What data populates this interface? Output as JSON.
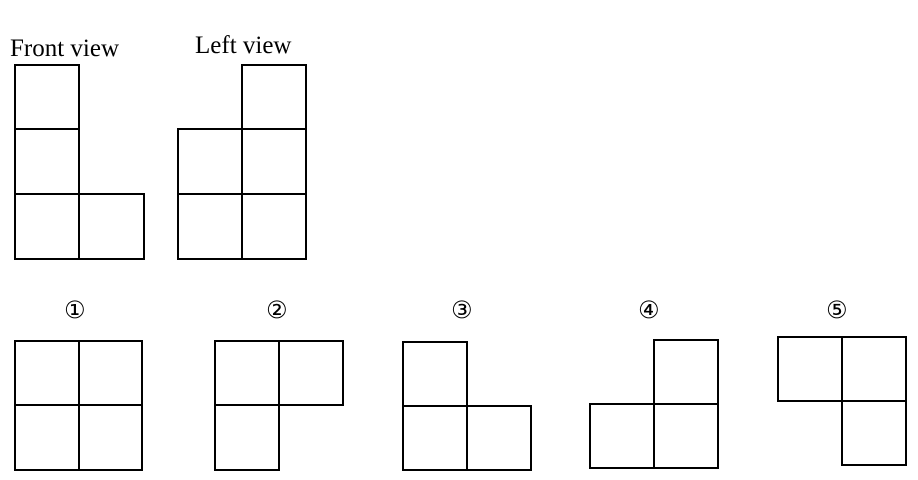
{
  "views": {
    "front_label": "Front view",
    "left_label": "Left view"
  },
  "options": [
    {
      "label": "①"
    },
    {
      "label": "②"
    },
    {
      "label": "③"
    },
    {
      "label": "④"
    },
    {
      "label": "⑤"
    }
  ],
  "colors": {
    "line": "#000000",
    "background": "#ffffff"
  }
}
